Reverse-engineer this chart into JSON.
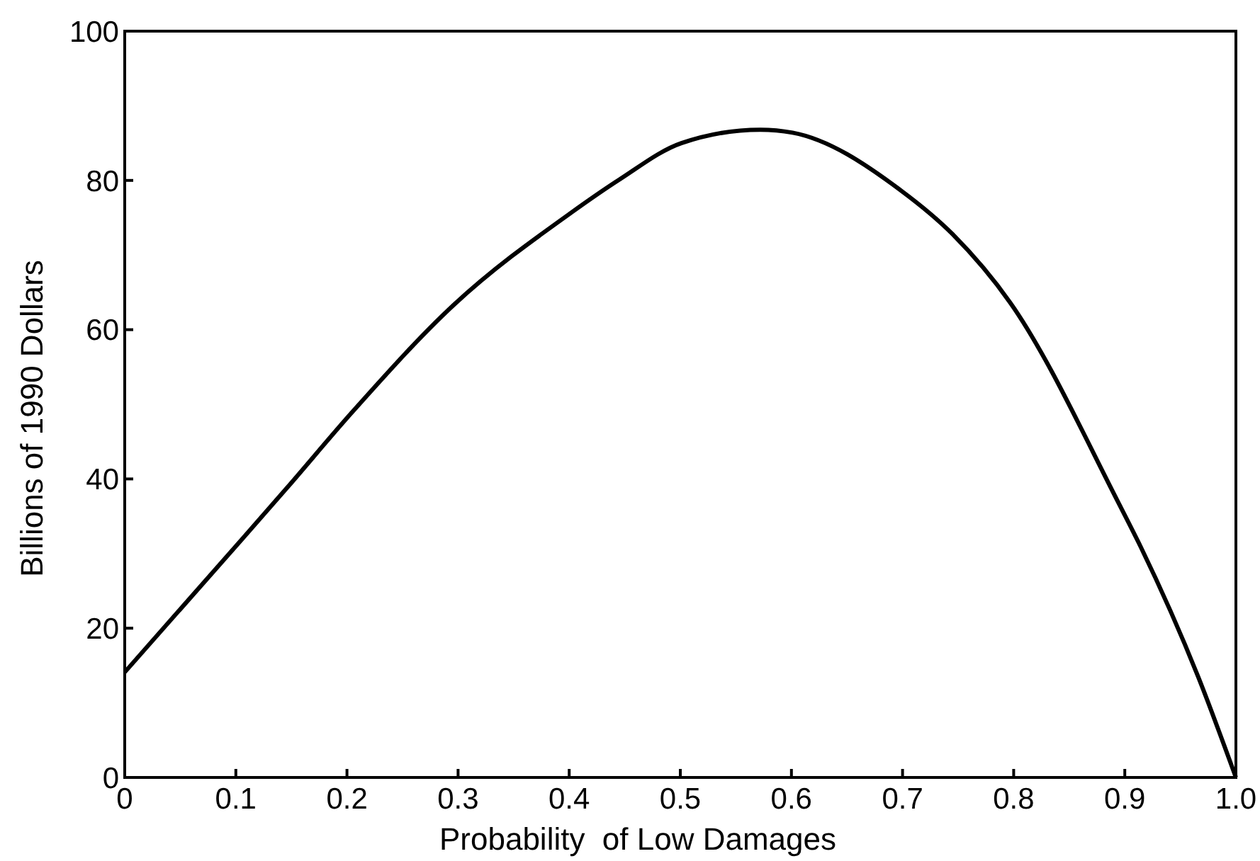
{
  "chart_data": {
    "type": "line",
    "xlabel": "Probability  of Low Damages",
    "ylabel": "Billions of 1990 Dollars",
    "x": [
      0,
      0.106,
      0.146,
      0.205,
      0.296,
      0.402,
      0.445,
      0.501,
      0.572,
      0.601,
      0.699,
      0.745,
      0.797,
      0.894,
      0.914,
      0.966,
      1.0
    ],
    "series": [
      {
        "color": "#000000",
        "values": [
          14.1,
          32.0,
          38.8,
          49.0,
          63.3,
          75.7,
          80.1,
          85.0,
          86.8,
          86.4,
          78.6,
          72.8,
          63.6,
          36.9,
          31.0,
          13.5,
          0
        ]
      }
    ],
    "xlim": [
      0,
      1
    ],
    "xticks": [
      0,
      0.1,
      0.2,
      0.3,
      0.4,
      0.5,
      0.6,
      0.7,
      0.8,
      0.9,
      {
        "value": 1,
        "label": "1.0"
      }
    ],
    "ylim": [
      0,
      100
    ],
    "yticks": [
      0,
      20,
      40,
      60,
      80,
      100
    ],
    "grid": false,
    "marker": "none",
    "line_style": "solid"
  }
}
